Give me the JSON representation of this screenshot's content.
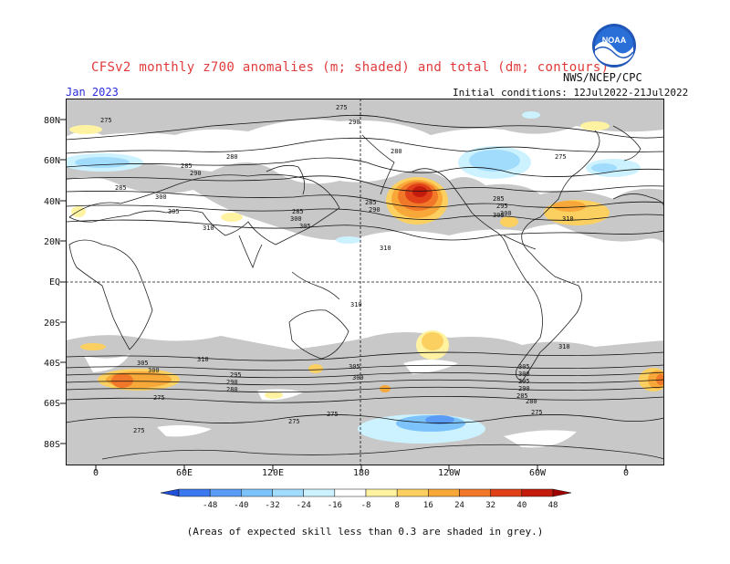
{
  "header": {
    "title": "CFSv2 monthly z700 anomalies (m; shaded) and total (dm; contours)",
    "valid_month": "Jan 2023",
    "initial_conditions": "Initial conditions: 12Jul2022-21Jul2022",
    "agency": "NWS/NCEP/CPC",
    "logo_text": "NOAA"
  },
  "axes": {
    "lat_labels": [
      "80N",
      "60N",
      "40N",
      "20N",
      "EQ",
      "20S",
      "40S",
      "60S",
      "80S"
    ],
    "lon_labels": [
      "0",
      "60E",
      "120E",
      "180",
      "120W",
      "60W",
      "0"
    ]
  },
  "colorbar": {
    "ticks": [
      "-48",
      "-40",
      "-32",
      "-24",
      "-16",
      "-8",
      "8",
      "16",
      "24",
      "32",
      "40",
      "48"
    ],
    "colors": [
      "#2050d8",
      "#3a78f0",
      "#5a9cf5",
      "#7cc2fb",
      "#a2dcfd",
      "#ccf2ff",
      "#ffffff",
      "#fff2a0",
      "#fcd060",
      "#f8a838",
      "#f07828",
      "#e04018",
      "#c41c0c",
      "#a00000"
    ]
  },
  "contour_labels": [
    "275",
    "280",
    "285",
    "290",
    "295",
    "300",
    "305",
    "310"
  ],
  "note": "(Areas of expected skill less than 0.3 are shaded in grey.)",
  "colors": {
    "skill_mask": "#c8c8c8",
    "title": "#e23a3a",
    "month": "#2a2ae0"
  }
}
